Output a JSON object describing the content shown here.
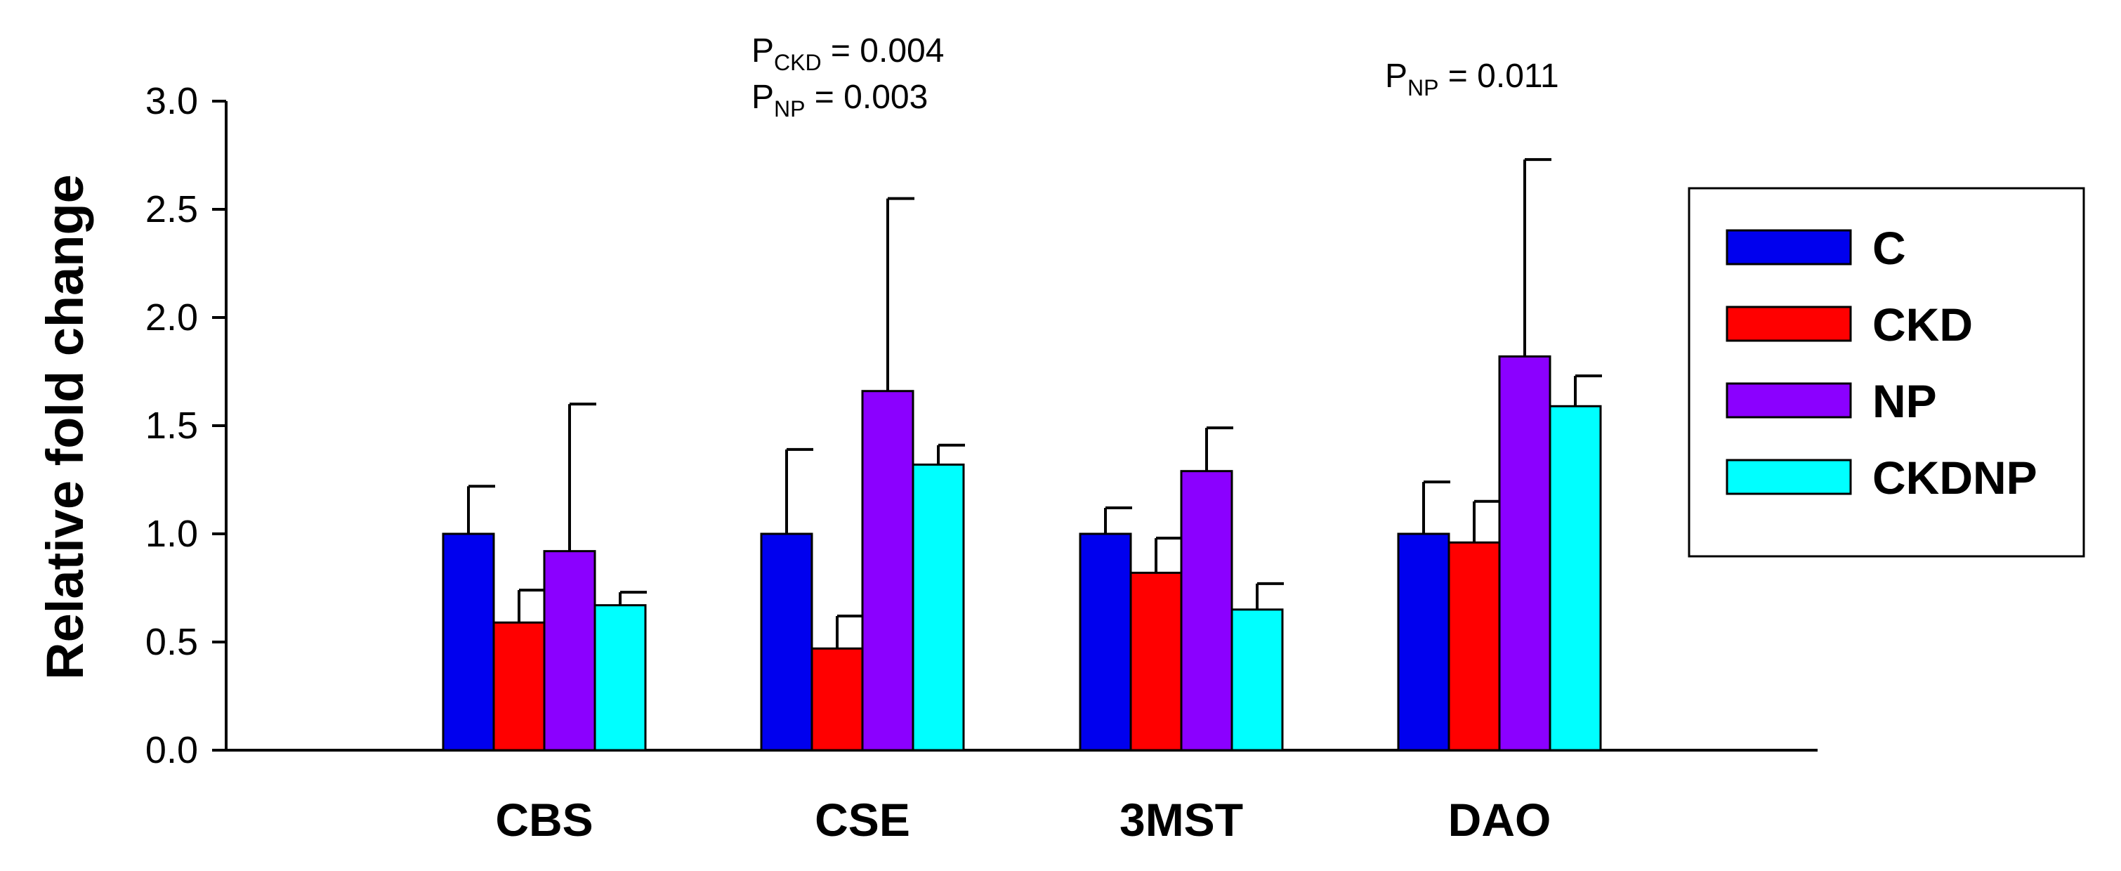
{
  "chart_data": {
    "type": "bar",
    "title": "",
    "xlabel": "",
    "ylabel": "Relative fold change",
    "ylim": [
      0,
      3.0
    ],
    "yticks": [
      "0.0",
      "0.5",
      "1.0",
      "1.5",
      "2.0",
      "2.5",
      "3.0"
    ],
    "categories": [
      "CBS",
      "CSE",
      "3MST",
      "DAO"
    ],
    "series": [
      {
        "name": "C",
        "color": "#0000ee",
        "values": [
          1.0,
          1.0,
          1.0,
          1.0
        ],
        "errors": [
          0.22,
          0.39,
          0.12,
          0.24
        ]
      },
      {
        "name": "CKD",
        "color": "#ff0000",
        "values": [
          0.59,
          0.47,
          0.82,
          0.96
        ],
        "errors": [
          0.15,
          0.15,
          0.16,
          0.19
        ]
      },
      {
        "name": "NP",
        "color": "#8b00ff",
        "values": [
          0.92,
          1.66,
          1.29,
          1.82
        ],
        "errors": [
          0.68,
          0.89,
          0.2,
          0.91
        ]
      },
      {
        "name": "CKDNP",
        "color": "#00ffff",
        "values": [
          0.67,
          1.32,
          0.65,
          1.59
        ],
        "errors": [
          0.06,
          0.09,
          0.12,
          0.14
        ]
      }
    ],
    "legend": {
      "position": "right",
      "entries": [
        "C",
        "CKD",
        "NP",
        "CKDNP"
      ]
    },
    "annotations": [
      {
        "target": "CSE",
        "lines": [
          {
            "main": "P",
            "sub": "CKD",
            "rest": " = 0.004"
          },
          {
            "main": "P",
            "sub": "NP",
            "rest": "  = 0.003"
          }
        ]
      },
      {
        "target": "DAO",
        "lines": [
          {
            "main": "P",
            "sub": "NP",
            "rest": " = 0.011"
          }
        ]
      }
    ]
  }
}
